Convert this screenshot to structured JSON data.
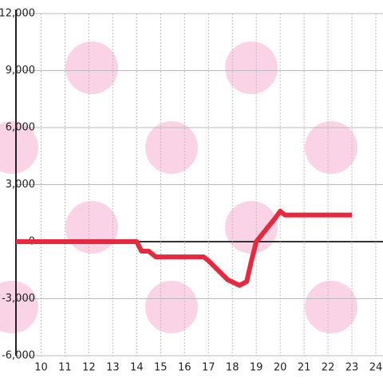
{
  "chart_data": {
    "type": "line",
    "x": [
      8.95,
      14,
      14.2,
      14.5,
      14.8,
      16.8,
      17,
      17.8,
      18.3,
      18.6,
      18.8,
      19,
      19.8,
      20,
      20.2,
      23
    ],
    "series": [
      {
        "color": "#e8283c",
        "values": [
          0,
          0,
          -500,
          -500,
          -800,
          -800,
          -1000,
          -2000,
          -2300,
          -2100,
          -1000,
          0,
          1250,
          1600,
          1400,
          1400
        ]
      }
    ],
    "xlim": [
      8.95,
      24.3
    ],
    "ylim": [
      -6000,
      12000
    ],
    "xticks": [
      10,
      11,
      12,
      13,
      14,
      15,
      16,
      17,
      18,
      19,
      20,
      21,
      22,
      23,
      24
    ],
    "yticks": [
      {
        "value": -6000,
        "label": "-6,000"
      },
      {
        "value": -3000,
        "label": "-3,000"
      },
      0,
      {
        "value": 3000,
        "label": "3,000"
      },
      {
        "value": 6000,
        "label": "6,000"
      },
      {
        "value": 9000,
        "label": "9,000"
      },
      {
        "value": 12000,
        "label": "12,000"
      }
    ],
    "grid": true
  }
}
